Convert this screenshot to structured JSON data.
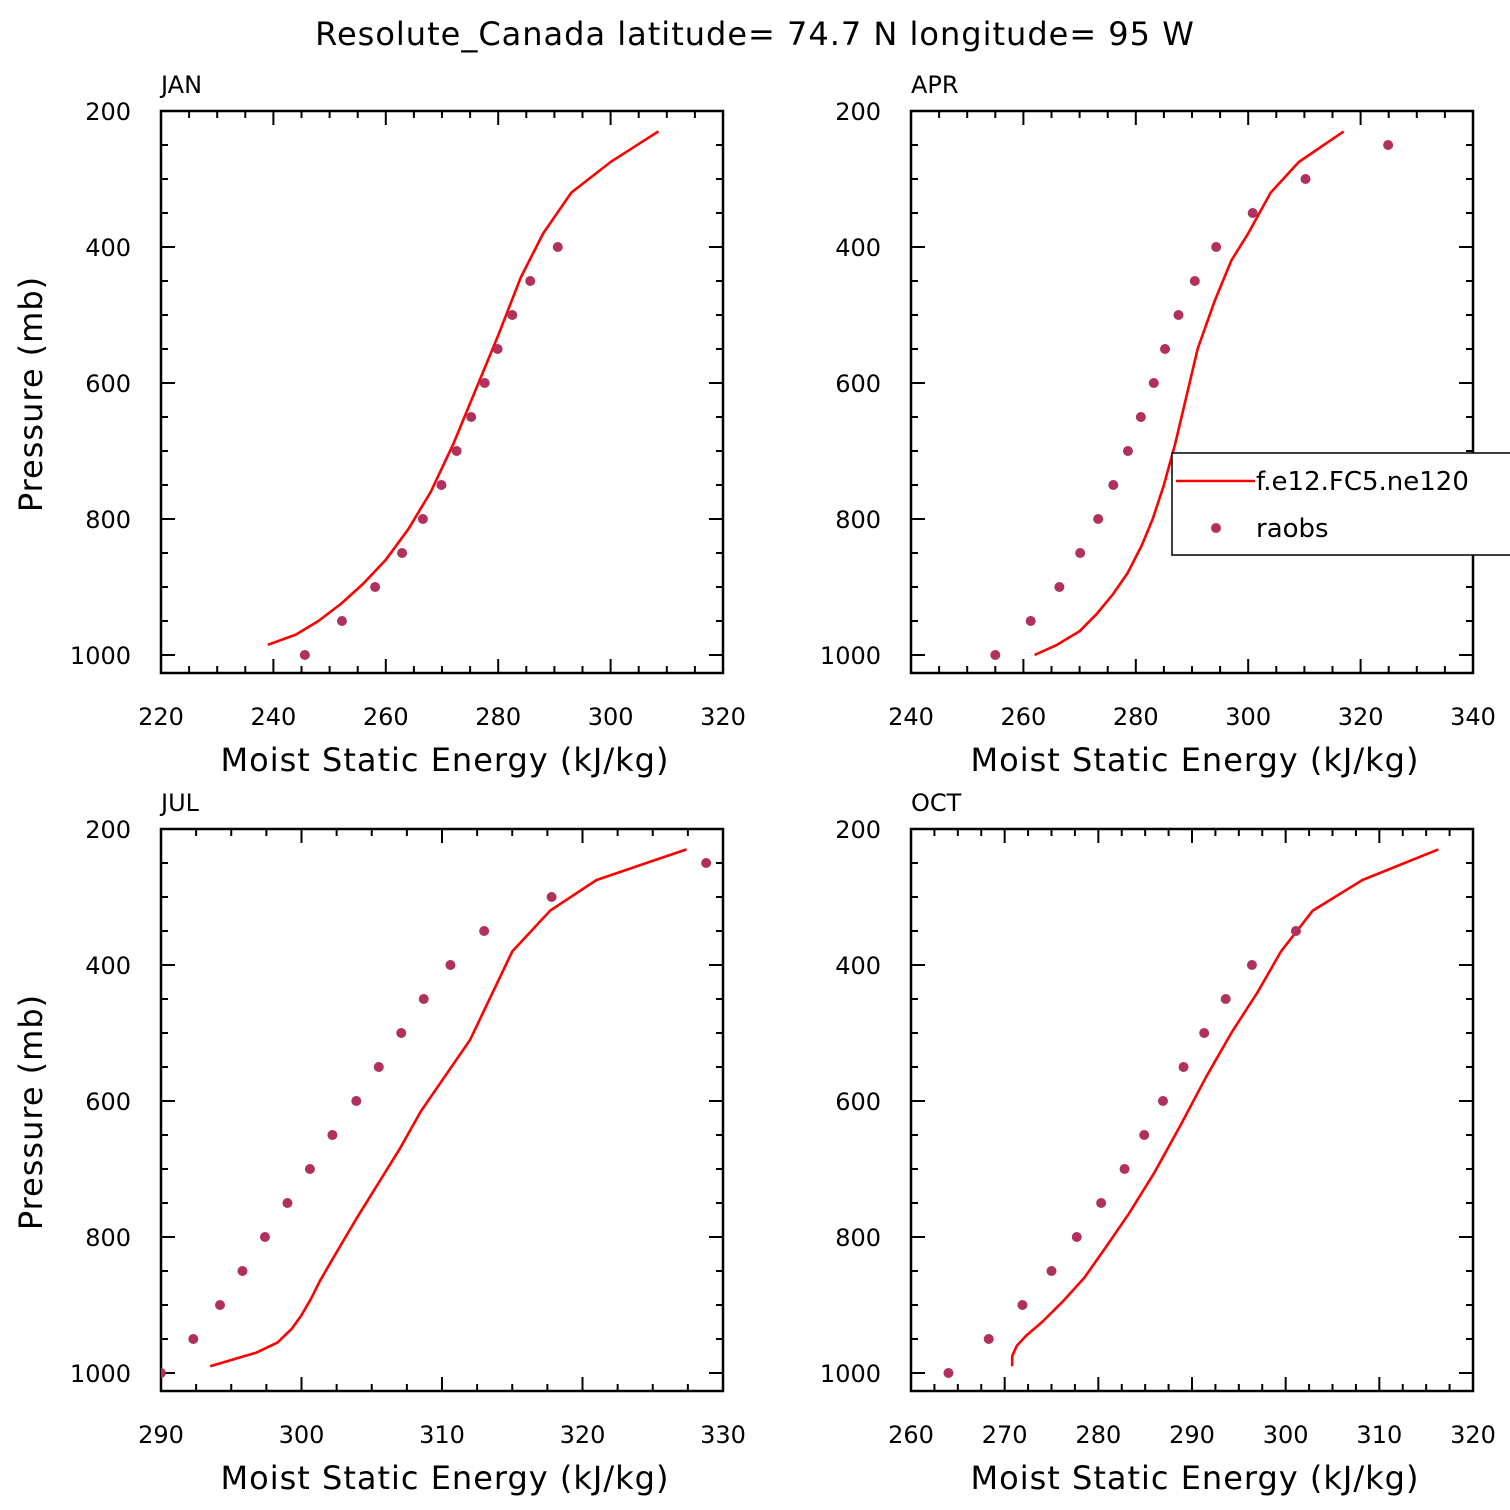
{
  "figure": {
    "title": "Resolute_Canada  latitude= 74.7 N longitude= 95 W"
  },
  "legend": {
    "model": "f.e12.FC5.ne120",
    "obs": "raobs"
  },
  "colors": {
    "model_line": "#ff0000",
    "obs_marker": "#b03060",
    "axes": "#000000"
  },
  "chart_data": [
    {
      "type": "line",
      "title": "JAN",
      "xlabel": "Moist Static Energy (kJ/kg)",
      "ylabel": "Pressure (mb)",
      "xlim": [
        220,
        320
      ],
      "ylim": [
        1020,
        200
      ],
      "xticks": [
        220,
        240,
        260,
        280,
        300,
        320
      ],
      "yticks": [
        200,
        400,
        600,
        800,
        1000
      ],
      "series": [
        {
          "name": "f.e12.FC5.ne120",
          "kind": "line",
          "x": [
            239,
            244,
            248,
            252,
            256,
            260,
            264,
            268,
            272,
            276,
            280,
            284,
            288,
            293,
            300,
            308.5
          ],
          "y": [
            985,
            970,
            950,
            925,
            895,
            860,
            815,
            760,
            690,
            610,
            530,
            445,
            380,
            320,
            275,
            230
          ]
        },
        {
          "name": "raobs",
          "kind": "scatter",
          "x": [
            245.6,
            252.2,
            258.1,
            262.9,
            266.6,
            269.9,
            272.6,
            275.2,
            277.6,
            279.9,
            282.5,
            285.7,
            290.6
          ],
          "y": [
            1000,
            950,
            900,
            850,
            800,
            750,
            700,
            650,
            600,
            550,
            500,
            450,
            400
          ]
        }
      ]
    },
    {
      "type": "line",
      "title": "APR",
      "xlabel": "Moist Static Energy (kJ/kg)",
      "ylabel": "",
      "xlim": [
        240,
        340
      ],
      "ylim": [
        1020,
        200
      ],
      "xticks": [
        240,
        260,
        280,
        300,
        320,
        340
      ],
      "yticks": [
        200,
        400,
        600,
        800,
        1000
      ],
      "series": [
        {
          "name": "f.e12.FC5.ne120",
          "kind": "line",
          "x": [
            262,
            266,
            270,
            273,
            276,
            278.5,
            281,
            283,
            285,
            287,
            289,
            291,
            294,
            297,
            300,
            304,
            309,
            317
          ],
          "y": [
            1000,
            985,
            965,
            940,
            910,
            880,
            840,
            800,
            750,
            690,
            620,
            550,
            480,
            420,
            380,
            320,
            275,
            230
          ]
        },
        {
          "name": "raobs",
          "kind": "scatter",
          "x": [
            255,
            261.3,
            266.4,
            270.1,
            273.3,
            276,
            278.6,
            280.9,
            283.2,
            285.2,
            287.6,
            290.5,
            294.3,
            300.8,
            310.2,
            324.9
          ],
          "y": [
            1000,
            950,
            900,
            850,
            800,
            750,
            700,
            650,
            600,
            550,
            500,
            450,
            400,
            350,
            300,
            250
          ]
        }
      ]
    },
    {
      "type": "line",
      "title": "JUL",
      "xlabel": "Moist Static Energy (kJ/kg)",
      "ylabel": "Pressure (mb)",
      "xlim": [
        290,
        330
      ],
      "ylim": [
        1020,
        200
      ],
      "xticks": [
        290,
        300,
        310,
        320,
        330
      ],
      "yticks": [
        200,
        400,
        600,
        800,
        1000
      ],
      "series": [
        {
          "name": "f.e12.FC5.ne120",
          "kind": "line",
          "x": [
            293.5,
            296.8,
            298.3,
            299.3,
            300,
            300.7,
            301.3,
            302,
            303,
            304,
            305.5,
            307,
            308.5,
            310,
            312,
            315,
            317.7,
            321,
            327.4
          ],
          "y": [
            990,
            970,
            955,
            935,
            915,
            890,
            865,
            840,
            805,
            770,
            720,
            670,
            615,
            570,
            510,
            380,
            320,
            275,
            230
          ]
        },
        {
          "name": "raobs",
          "kind": "scatter",
          "x": [
            290,
            292.3,
            294.2,
            295.8,
            297.4,
            299,
            300.6,
            302.2,
            303.9,
            305.5,
            307.1,
            308.7,
            310.6,
            313,
            317.8,
            328.8
          ],
          "y": [
            1000,
            950,
            900,
            850,
            800,
            750,
            700,
            650,
            600,
            550,
            500,
            450,
            400,
            350,
            300,
            250
          ]
        }
      ]
    },
    {
      "type": "line",
      "title": "OCT",
      "xlabel": "Moist Static Energy (kJ/kg)",
      "ylabel": "",
      "xlim": [
        260,
        320
      ],
      "ylim": [
        1020,
        200
      ],
      "xticks": [
        260,
        270,
        280,
        290,
        300,
        310,
        320
      ],
      "yticks": [
        200,
        400,
        600,
        800,
        1000
      ],
      "series": [
        {
          "name": "f.e12.FC5.ne120",
          "kind": "line",
          "x": [
            270.8,
            270.8,
            271.3,
            272.3,
            274,
            276.2,
            278.5,
            280.8,
            283.3,
            286,
            288.8,
            291.5,
            294.2,
            297,
            299.5,
            302.9,
            308.2,
            316.3
          ],
          "y": [
            990,
            975,
            960,
            945,
            925,
            895,
            860,
            815,
            765,
            705,
            635,
            565,
            500,
            440,
            380,
            320,
            275,
            230
          ]
        },
        {
          "name": "raobs",
          "kind": "scatter",
          "x": [
            264,
            268.3,
            271.9,
            275,
            277.7,
            280.3,
            282.8,
            284.9,
            286.9,
            289.1,
            291.3,
            293.6,
            296.4,
            301.1
          ],
          "y": [
            1000,
            950,
            900,
            850,
            800,
            750,
            700,
            650,
            600,
            550,
            500,
            450,
            400,
            350
          ]
        }
      ]
    }
  ]
}
